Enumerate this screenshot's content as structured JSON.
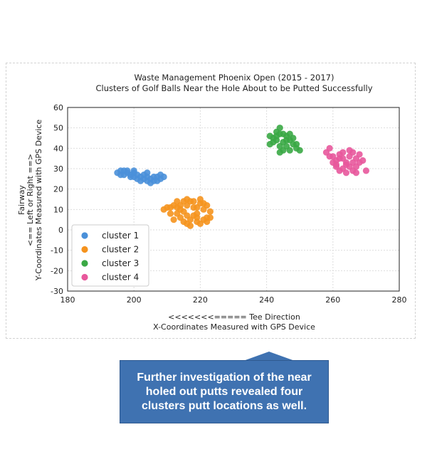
{
  "callout": {
    "text": "Further investigation of the near holed out putts revealed four clusters putt locations as well."
  },
  "colors": {
    "cluster_1": "#4a90d9",
    "cluster_2": "#f5931e",
    "cluster_3": "#3aa845",
    "cluster_4": "#e8589c",
    "callout_bg": "#3f72b1"
  },
  "chart_data": {
    "type": "scatter",
    "title": "Waste Management Phoenix Open (2015 - 2017)",
    "subtitle": "Clusters of Golf Balls Near the Hole About to be Putted Successfully",
    "xlabel_line1": "<<<<<<<===== Tee Direction",
    "xlabel_line2": "X-Coordinates Measured with GPS Device",
    "ylabel_line1": "Fairway",
    "ylabel_line2": "<== Left or Right ==>",
    "ylabel_line3": "Y-Coordinates Measured with GPS Device",
    "xlim": [
      180,
      280
    ],
    "ylim": [
      -30,
      60
    ],
    "xticks": [
      180,
      200,
      220,
      240,
      260,
      280
    ],
    "yticks": [
      -30,
      -20,
      -10,
      0,
      10,
      20,
      30,
      40,
      50,
      60
    ],
    "grid": true,
    "legend_position": "lower-left",
    "series": [
      {
        "name": "cluster 1",
        "color": "#4a90d9",
        "points": [
          [
            195,
            28
          ],
          [
            196,
            27
          ],
          [
            197,
            29
          ],
          [
            198,
            28
          ],
          [
            199,
            27
          ],
          [
            200,
            28
          ],
          [
            201,
            27
          ],
          [
            200,
            26
          ],
          [
            202,
            26
          ],
          [
            203,
            25
          ],
          [
            204,
            26
          ],
          [
            205,
            25
          ],
          [
            206,
            24
          ],
          [
            207,
            26
          ],
          [
            208,
            27
          ],
          [
            209,
            26
          ],
          [
            205,
            23
          ],
          [
            204,
            24
          ],
          [
            202,
            24
          ],
          [
            199,
            26
          ],
          [
            197,
            27
          ],
          [
            198,
            29
          ],
          [
            203,
            27
          ],
          [
            206,
            26
          ],
          [
            208,
            25
          ],
          [
            196,
            29
          ],
          [
            201,
            25
          ],
          [
            207,
            24
          ],
          [
            200,
            29
          ],
          [
            204,
            28
          ]
        ]
      },
      {
        "name": "cluster 2",
        "color": "#f5931e",
        "points": [
          [
            209,
            10
          ],
          [
            211,
            8
          ],
          [
            212,
            12
          ],
          [
            213,
            14
          ],
          [
            214,
            10
          ],
          [
            215,
            9
          ],
          [
            216,
            12
          ],
          [
            217,
            14
          ],
          [
            218,
            11
          ],
          [
            219,
            8
          ],
          [
            220,
            13
          ],
          [
            221,
            10
          ],
          [
            222,
            6
          ],
          [
            223,
            9
          ],
          [
            222,
            12
          ],
          [
            214,
            6
          ],
          [
            215,
            4
          ],
          [
            216,
            3
          ],
          [
            217,
            5
          ],
          [
            218,
            7
          ],
          [
            219,
            4
          ],
          [
            220,
            3
          ],
          [
            221,
            5
          ],
          [
            213,
            8
          ],
          [
            212,
            5
          ],
          [
            215,
            14
          ],
          [
            218,
            14
          ],
          [
            220,
            15
          ],
          [
            216,
            7
          ],
          [
            219,
            11
          ],
          [
            221,
            13
          ],
          [
            217,
            2
          ],
          [
            214,
            12
          ],
          [
            210,
            11
          ],
          [
            222,
            4
          ],
          [
            213,
            11
          ],
          [
            216,
            15
          ],
          [
            219,
            6
          ],
          [
            211,
            11
          ],
          [
            223,
            6
          ]
        ]
      },
      {
        "name": "cluster 3",
        "color": "#3aa845",
        "points": [
          [
            241,
            42
          ],
          [
            242,
            45
          ],
          [
            243,
            48
          ],
          [
            244,
            47
          ],
          [
            243,
            44
          ],
          [
            244,
            41
          ],
          [
            245,
            43
          ],
          [
            246,
            46
          ],
          [
            247,
            44
          ],
          [
            248,
            42
          ],
          [
            249,
            40
          ],
          [
            246,
            41
          ],
          [
            245,
            39
          ],
          [
            244,
            38
          ],
          [
            247,
            39
          ],
          [
            250,
            39
          ],
          [
            242,
            43
          ],
          [
            243,
            46
          ],
          [
            245,
            47
          ],
          [
            248,
            45
          ],
          [
            246,
            44
          ],
          [
            247,
            47
          ],
          [
            244,
            50
          ],
          [
            241,
            46
          ],
          [
            249,
            42
          ]
        ]
      },
      {
        "name": "cluster 4",
        "color": "#e8589c",
        "points": [
          [
            258,
            38
          ],
          [
            259,
            40
          ],
          [
            260,
            36
          ],
          [
            261,
            34
          ],
          [
            262,
            37
          ],
          [
            263,
            35
          ],
          [
            264,
            33
          ],
          [
            265,
            36
          ],
          [
            266,
            38
          ],
          [
            267,
            35
          ],
          [
            268,
            33
          ],
          [
            269,
            34
          ],
          [
            270,
            29
          ],
          [
            261,
            31
          ],
          [
            262,
            29
          ],
          [
            263,
            30
          ],
          [
            264,
            32
          ],
          [
            265,
            31
          ],
          [
            266,
            29
          ],
          [
            267,
            31
          ],
          [
            260,
            33
          ],
          [
            262,
            35
          ],
          [
            263,
            38
          ],
          [
            265,
            39
          ],
          [
            266,
            33
          ],
          [
            268,
            37
          ],
          [
            264,
            28
          ],
          [
            259,
            36
          ],
          [
            261,
            32
          ],
          [
            267,
            28
          ]
        ]
      }
    ]
  }
}
